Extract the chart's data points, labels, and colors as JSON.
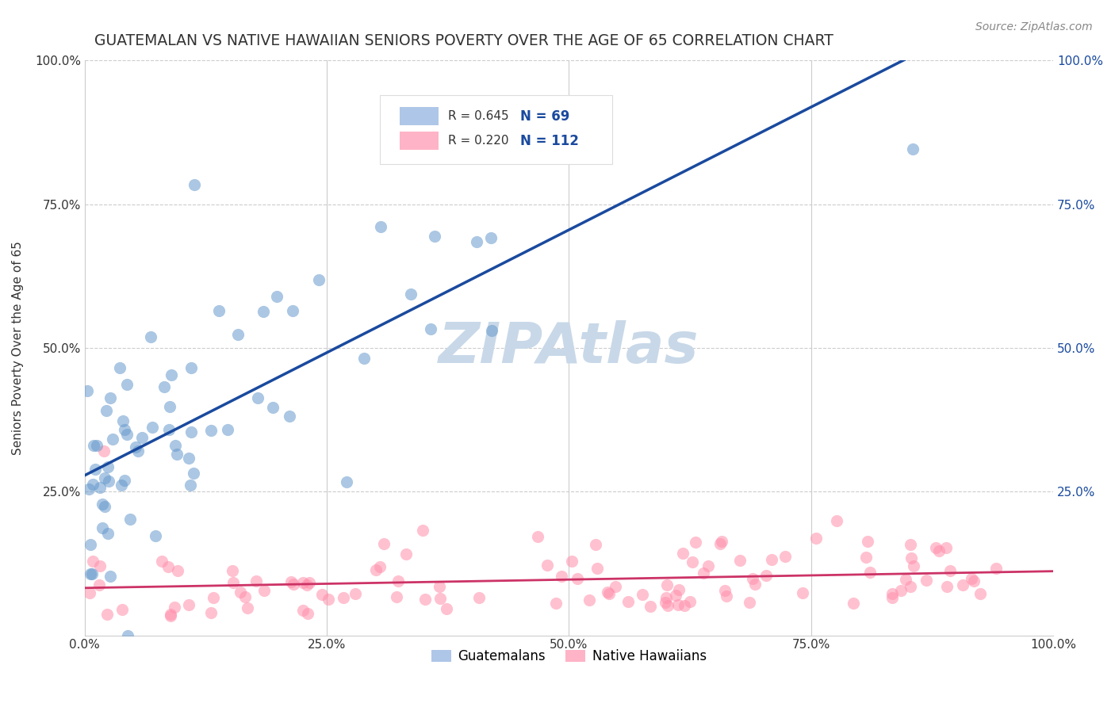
{
  "title": "GUATEMALAN VS NATIVE HAWAIIAN SENIORS POVERTY OVER THE AGE OF 65 CORRELATION CHART",
  "source": "Source: ZipAtlas.com",
  "ylabel": "Seniors Poverty Over the Age of 65",
  "xlabel": "",
  "guatemalan_R": 0.645,
  "guatemalan_N": 69,
  "hawaiian_R": 0.22,
  "hawaiian_N": 112,
  "blue_color": "#6699CC",
  "pink_color": "#FF8FAB",
  "blue_line_color": "#1A4A9E",
  "pink_line_color": "#CC3366",
  "legend_box_color_blue": "#AEC6E8",
  "legend_box_color_pink": "#FFB3C6",
  "watermark_color": "#C8D8E8",
  "background_color": "#FFFFFF",
  "xlim": [
    0,
    1
  ],
  "ylim": [
    0,
    1
  ],
  "xtick_labels": [
    "0.0%",
    "25.0%",
    "50.0%",
    "75.0%",
    "100.0%"
  ],
  "xtick_positions": [
    0,
    0.25,
    0.5,
    0.75,
    1.0
  ],
  "ytick_labels": [
    "25.0%",
    "50.0%",
    "75.0%",
    "100.0%"
  ],
  "ytick_positions": [
    0.25,
    0.5,
    0.75,
    1.0
  ],
  "right_ytick_labels": [
    "100.0%",
    "75.0%",
    "50.0%",
    "25.0%"
  ],
  "right_ytick_positions": [
    1.0,
    0.75,
    0.5,
    0.25
  ]
}
